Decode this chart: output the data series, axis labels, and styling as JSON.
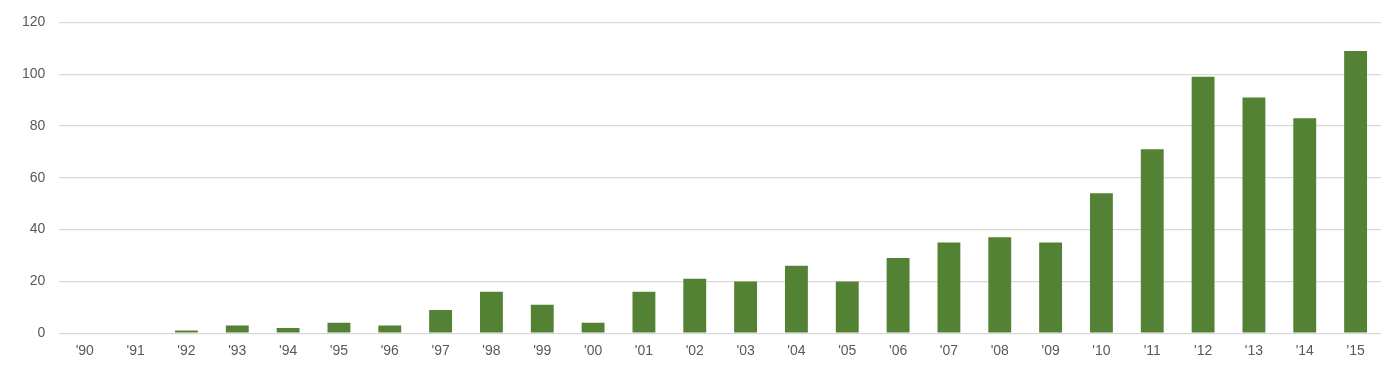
{
  "chart_data": {
    "type": "bar",
    "categories": [
      "'90",
      "'91",
      "'92",
      "'93",
      "'94",
      "'95",
      "'96",
      "'97",
      "'98",
      "'99",
      "'00",
      "'01",
      "'02",
      "'03",
      "'04",
      "'05",
      "'06",
      "'07",
      "'08",
      "'09",
      "'10",
      "'11",
      "'12",
      "'13",
      "'14",
      "'15"
    ],
    "values": [
      0,
      0,
      1,
      3,
      2,
      4,
      3,
      9,
      16,
      11,
      4,
      16,
      21,
      20,
      26,
      20,
      29,
      35,
      37,
      35,
      54,
      71,
      99,
      91,
      83,
      109
    ],
    "color": "#548235",
    "ylim": [
      0,
      120
    ],
    "yticks": [
      0,
      20,
      40,
      60,
      80,
      100,
      120
    ],
    "grid": "y",
    "legend": false
  }
}
